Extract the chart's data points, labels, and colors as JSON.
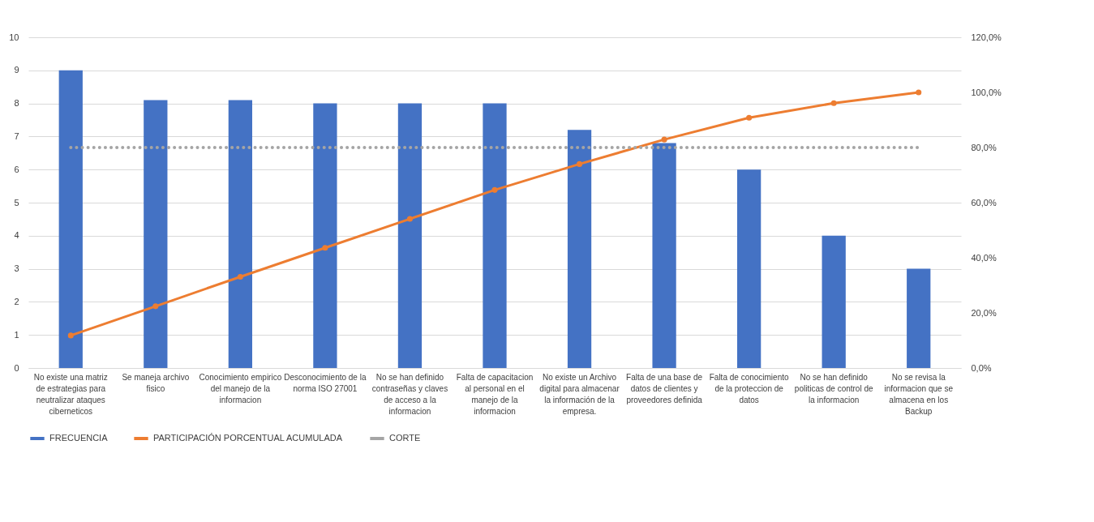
{
  "chart_data": {
    "type": "bar",
    "categories": [
      "No existe una matriz de estrategias para neutralizar ataques ciberneticos",
      "Se maneja archivo fisico",
      "Conocimiento empirico del manejo de la informacion",
      "Desconocimiento de la norma ISO 27001",
      "No se han definido contraseñas y claves de acceso a la informacion",
      "Falta de capacitacion al personal en el manejo de la informacion",
      "No existe un Archivo digital para almacenar la información de la empresa.",
      "Falta de una base de datos de clientes y proveedores definida",
      "Falta de conocimiento de la proteccion de datos",
      "No se han definido politicas de control de la informacion",
      "No se revisa la informacion que se almacena en los Backup"
    ],
    "series": [
      {
        "name": "FRECUENCIA",
        "color": "#4472c4",
        "values": [
          9,
          8.1,
          8.1,
          8,
          8,
          8,
          7.2,
          6.8,
          6,
          4,
          3
        ]
      },
      {
        "name": "PARTICIPACIÓN PORCENTUAL ACUMULADA",
        "type": "line",
        "axis": "y2",
        "color": "#ed7d31",
        "marker": "circle",
        "line_style": "solid",
        "values": [
          11.8,
          22.4,
          33.1,
          43.6,
          54.1,
          64.6,
          74,
          82.9,
          90.8,
          96.1,
          100
        ]
      },
      {
        "name": "CORTE",
        "type": "line",
        "axis": "y2",
        "color": "#a5a5a5",
        "marker": "none",
        "line_style": "dotted",
        "values": [
          80,
          80,
          80,
          80,
          80,
          80,
          80,
          80,
          80,
          80,
          80
        ]
      }
    ],
    "ylim": [
      0,
      10
    ],
    "yticks": [
      0,
      1,
      2,
      3,
      4,
      5,
      6,
      7,
      8,
      9,
      10
    ],
    "y2lim": [
      0,
      120
    ],
    "y2ticks": [
      {
        "value": 0,
        "label": "0,0%"
      },
      {
        "value": 20,
        "label": "20,0%"
      },
      {
        "value": 40,
        "label": "40,0%"
      },
      {
        "value": 60,
        "label": "60,0%"
      },
      {
        "value": 80,
        "label": "80,0%"
      },
      {
        "value": 100,
        "label": "100,0%"
      },
      {
        "value": 120,
        "label": "120,0%"
      }
    ],
    "grid": "y",
    "legend": "bottom"
  }
}
